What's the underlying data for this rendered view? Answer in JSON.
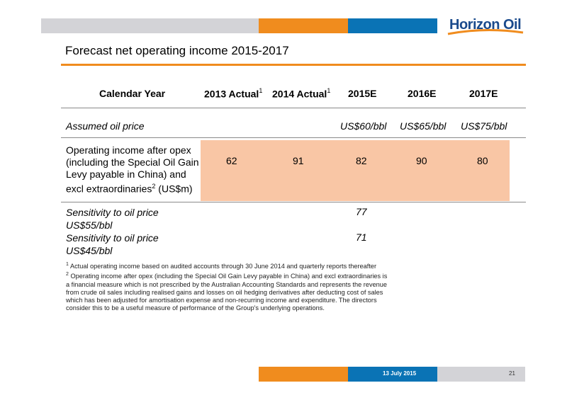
{
  "header": {
    "logo_text": "Horizon Oil"
  },
  "title": "Forecast net operating income 2015-2017",
  "table": {
    "columns": [
      {
        "label": "Calendar Year",
        "sup": ""
      },
      {
        "label": "2013 Actual",
        "sup": "1"
      },
      {
        "label": "2014 Actual",
        "sup": "1"
      },
      {
        "label": "2015E",
        "sup": ""
      },
      {
        "label": "2016E",
        "sup": ""
      },
      {
        "label": "2017E",
        "sup": ""
      }
    ],
    "oil_price": {
      "label": "Assumed oil price",
      "values": [
        "US$60/bbl",
        "US$65/bbl",
        "US$75/bbl"
      ]
    },
    "operating_income": {
      "label_lines": [
        "Operating income after opex",
        "(including the Special Oil Gain",
        "Levy payable in China) and",
        "excl extraordinaries"
      ],
      "label_sup": "2",
      "label_unit": " (US$m)",
      "values": [
        "62",
        "91",
        "82",
        "90",
        "80"
      ]
    },
    "sensitivity_55": {
      "label_line1": "Sensitivity to oil price",
      "label_line2": "US$55/bbl",
      "value": "77"
    },
    "sensitivity_45": {
      "label_line1": "Sensitivity to oil price",
      "label_line2": "US$45/bbl",
      "value": "71"
    }
  },
  "footnotes": {
    "note1_num": "1",
    "note1": " Actual operating income based on audited accounts through 30 June 2014 and quarterly reports thereafter",
    "note2_num": "2",
    "note2": " Operating income after opex (including the Special Oil Gain Levy payable in China) and excl extraordinaries is a financial measure which is not prescribed by the Australian Accounting Standards and represents the revenue from crude oil sales including realised gains and losses on oil hedging derivatives after deducting cost of sales which has been adjusted for amortisation expense and non-recurring income and expenditure. The directors consider this to be a useful measure of performance of the Group's underlying operations."
  },
  "footer": {
    "date": "13 July 2015",
    "page": "21"
  },
  "colors": {
    "orange": "#f08c1e",
    "blue": "#0a73b5",
    "gray": "#d3d3d7",
    "highlight": "#f9c6a5",
    "logo_blue": "#1a4a8c"
  }
}
